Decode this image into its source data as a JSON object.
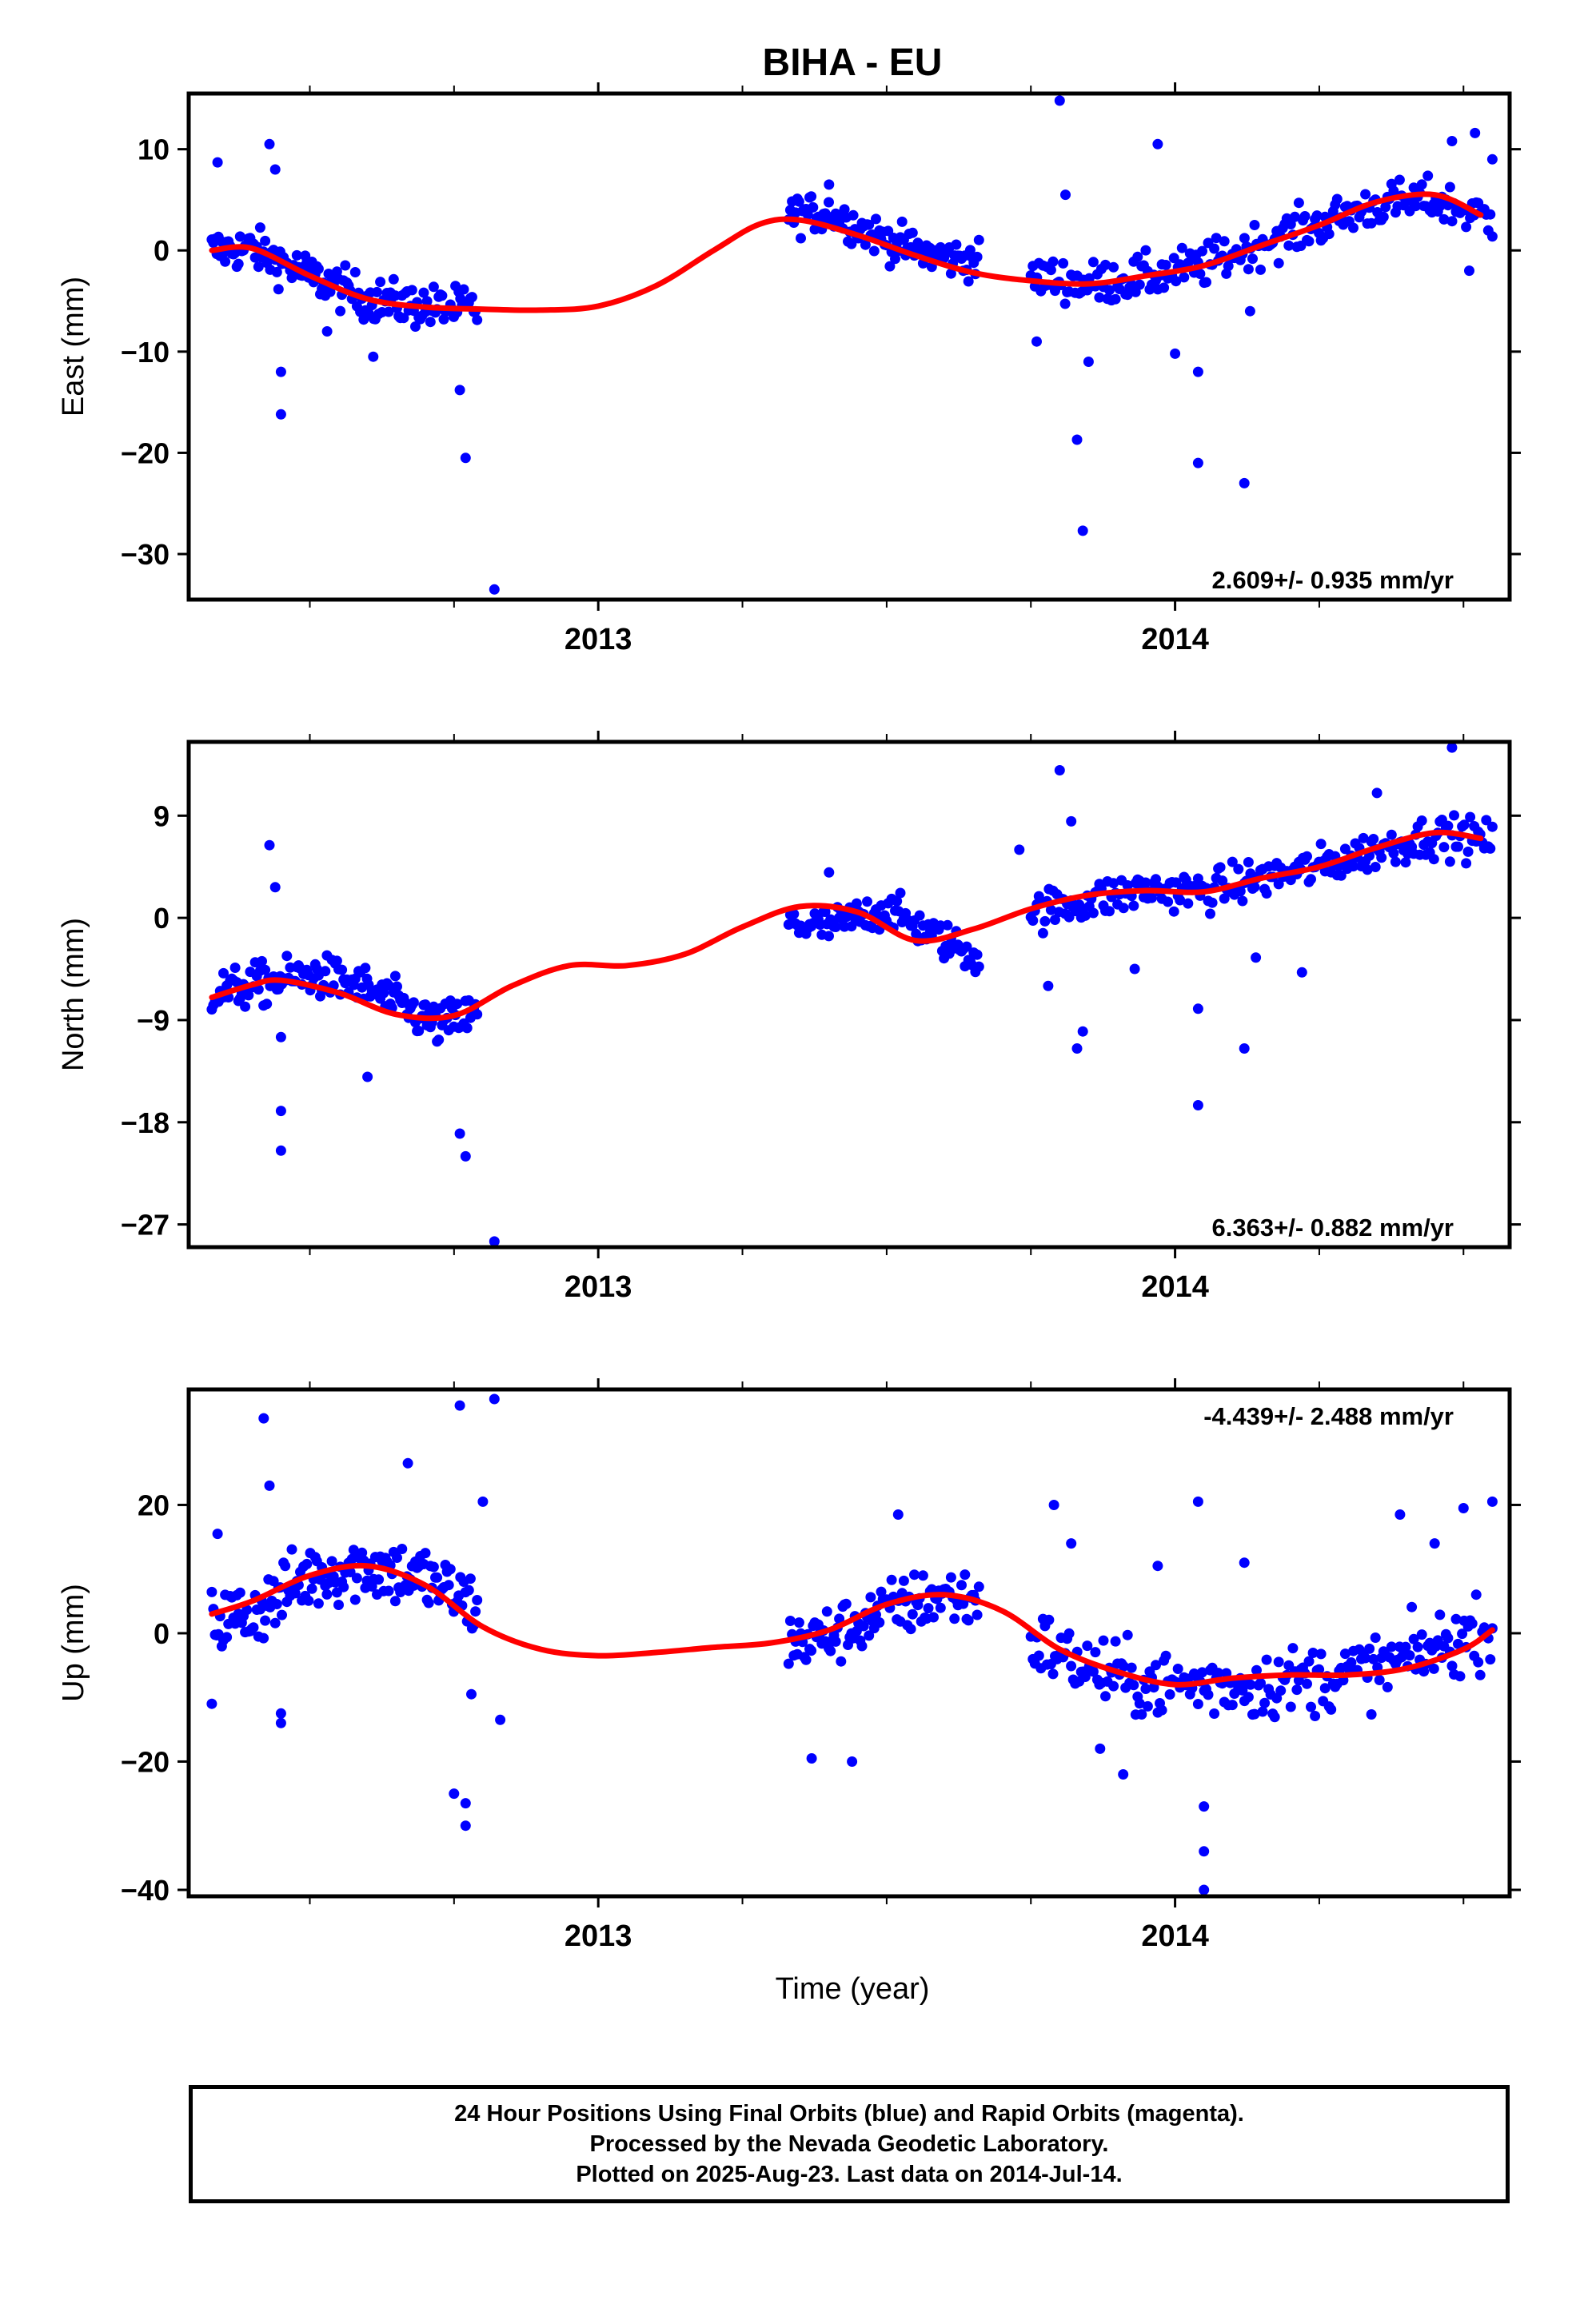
{
  "title": "BIHA - EU",
  "xlabel": "Time (year)",
  "caption": [
    "24 Hour Positions Using Final Orbits (blue) and Rapid Orbits (magenta).",
    "Processed by the Nevada Geodetic Laboratory.",
    "Plotted on 2025-Aug-23. Last data on 2014-Jul-14."
  ],
  "colors": {
    "points": "#0000ff",
    "fit": "#ff0000",
    "axis": "#000000"
  },
  "chart_data": [
    {
      "type": "scatter",
      "ylabel": "East (mm)",
      "rate_label": "2.609+/- 0.935 mm/yr",
      "xlim": [
        2012.29,
        2014.58
      ],
      "ylim": [
        -34.5,
        15.5
      ],
      "yticks": [
        10,
        0,
        -10,
        -20,
        -30
      ],
      "ytick_labels": [
        "10",
        "0",
        "−10",
        "−20",
        "−30"
      ],
      "xticks": [
        2013,
        2014
      ],
      "xtick_labels": [
        "2013",
        "2014"
      ],
      "x_minor": [
        2012.25,
        2012.5,
        2012.75,
        2013.25,
        2013.5,
        2013.75,
        2014.25,
        2014.5
      ],
      "fit": {
        "x": [
          2012.33,
          2012.4,
          2012.5,
          2012.6,
          2012.7,
          2012.8,
          2012.9,
          2013.0,
          2013.1,
          2013.2,
          2013.28,
          2013.35,
          2013.45,
          2013.55,
          2013.65,
          2013.75,
          2013.85,
          2013.95,
          2014.05,
          2014.15,
          2014.25,
          2014.35,
          2014.45,
          2014.53
        ],
        "y": [
          0,
          0.2,
          -2.5,
          -4.8,
          -5.6,
          -5.8,
          -5.9,
          -5.5,
          -3.5,
          0,
          2.6,
          3.0,
          1.5,
          -0.5,
          -2.2,
          -3.0,
          -3.3,
          -2.5,
          -1.5,
          0.5,
          2.5,
          4.8,
          5.5,
          3.5
        ]
      },
      "segments": [
        {
          "x0": 2012.33,
          "x1": 2012.79,
          "center": [
            [
              2012.33,
              0
            ],
            [
              2012.4,
              0.2
            ],
            [
              2012.5,
              -2.5
            ],
            [
              2012.6,
              -4.8
            ],
            [
              2012.7,
              -5.6
            ],
            [
              2012.79,
              -5.8
            ]
          ],
          "spread": 1.8,
          "n": 160
        },
        {
          "x0": 2013.33,
          "x1": 2013.66,
          "center": [
            [
              2013.33,
              3.5
            ],
            [
              2013.4,
              3.8
            ],
            [
              2013.5,
              1.0
            ],
            [
              2013.58,
              -0.5
            ],
            [
              2013.66,
              -1.0
            ]
          ],
          "spread": 1.6,
          "n": 110
        },
        {
          "x0": 2013.75,
          "x1": 2014.55,
          "center": [
            [
              2013.75,
              -2.5
            ],
            [
              2013.85,
              -3.3
            ],
            [
              2013.95,
              -2.6
            ],
            [
              2014.05,
              -1.5
            ],
            [
              2014.15,
              0.8
            ],
            [
              2014.25,
              2.6
            ],
            [
              2014.35,
              4.5
            ],
            [
              2014.45,
              5.0
            ],
            [
              2014.55,
              3.0
            ]
          ],
          "spread": 1.8,
          "n": 230
        }
      ],
      "outliers": [
        [
          2012.34,
          8.7
        ],
        [
          2012.43,
          10.5
        ],
        [
          2012.44,
          8.0
        ],
        [
          2012.45,
          -12.0
        ],
        [
          2012.45,
          -16.2
        ],
        [
          2012.76,
          -13.8
        ],
        [
          2012.77,
          -20.5
        ],
        [
          2012.82,
          -33.5
        ],
        [
          2013.4,
          6.5
        ],
        [
          2013.8,
          14.8
        ],
        [
          2013.76,
          -9.0
        ],
        [
          2013.83,
          -18.7
        ],
        [
          2013.84,
          -27.7
        ],
        [
          2013.85,
          -11.0
        ],
        [
          2013.97,
          10.5
        ],
        [
          2014.0,
          -10.2
        ],
        [
          2014.04,
          -12.0
        ],
        [
          2014.04,
          -21.0
        ],
        [
          2014.12,
          -23.0
        ],
        [
          2014.48,
          10.8
        ],
        [
          2014.52,
          11.6
        ],
        [
          2014.55,
          9.0
        ],
        [
          2012.53,
          -8.0
        ],
        [
          2012.61,
          -10.5
        ],
        [
          2013.81,
          5.5
        ],
        [
          2014.13,
          -6.0
        ],
        [
          2014.51,
          -2.0
        ]
      ]
    },
    {
      "type": "scatter",
      "ylabel": "North (mm)",
      "rate_label": "6.363+/- 0.882 mm/yr",
      "xlim": [
        2012.29,
        2014.58
      ],
      "ylim": [
        -29.0,
        15.5
      ],
      "yticks": [
        9,
        0,
        -9,
        -18,
        -27
      ],
      "ytick_labels": [
        "9",
        "0",
        "−9",
        "−18",
        "−27"
      ],
      "xticks": [
        2013,
        2014
      ],
      "xtick_labels": [
        "2013",
        "2014"
      ],
      "x_minor": [
        2012.25,
        2012.5,
        2012.75,
        2013.25,
        2013.5,
        2013.75,
        2014.25,
        2014.5
      ],
      "fit": {
        "x": [
          2012.33,
          2012.4,
          2012.45,
          2012.55,
          2012.65,
          2012.75,
          2012.85,
          2012.95,
          2013.05,
          2013.15,
          2013.25,
          2013.35,
          2013.45,
          2013.55,
          2013.65,
          2013.75,
          2013.85,
          2013.95,
          2014.05,
          2014.15,
          2014.25,
          2014.35,
          2014.45,
          2014.53
        ],
        "y": [
          -7.0,
          -5.9,
          -5.5,
          -6.6,
          -8.5,
          -8.6,
          -6.0,
          -4.2,
          -4.2,
          -3.2,
          -0.8,
          1.0,
          0.5,
          -2.0,
          -1.0,
          0.8,
          2.0,
          2.4,
          2.3,
          3.5,
          4.5,
          6.2,
          7.5,
          7.0
        ]
      },
      "segments": [
        {
          "x0": 2012.33,
          "x1": 2012.79,
          "center": [
            [
              2012.33,
              -6.6
            ],
            [
              2012.4,
              -6.0
            ],
            [
              2012.5,
              -5.0
            ],
            [
              2012.58,
              -5.8
            ],
            [
              2012.65,
              -7.5
            ],
            [
              2012.72,
              -9.5
            ],
            [
              2012.79,
              -8.5
            ]
          ],
          "spread": 1.6,
          "n": 160
        },
        {
          "x0": 2013.33,
          "x1": 2013.66,
          "center": [
            [
              2013.33,
              -0.5
            ],
            [
              2013.4,
              -0.8
            ],
            [
              2013.5,
              0.8
            ],
            [
              2013.58,
              -1.5
            ],
            [
              2013.66,
              -3.5
            ]
          ],
          "spread": 1.4,
          "n": 110
        },
        {
          "x0": 2013.75,
          "x1": 2014.55,
          "center": [
            [
              2013.75,
              0.5
            ],
            [
              2013.85,
              1.5
            ],
            [
              2013.95,
              2.5
            ],
            [
              2014.05,
              2.3
            ],
            [
              2014.15,
              3.5
            ],
            [
              2014.25,
              4.5
            ],
            [
              2014.35,
              6.0
            ],
            [
              2014.45,
              7.3
            ],
            [
              2014.55,
              6.8
            ]
          ],
          "spread": 1.5,
          "n": 230
        }
      ],
      "outliers": [
        [
          2012.43,
          6.4
        ],
        [
          2012.44,
          2.7
        ],
        [
          2012.45,
          -10.5
        ],
        [
          2012.45,
          -17.0
        ],
        [
          2012.45,
          -20.5
        ],
        [
          2012.6,
          -14.0
        ],
        [
          2012.76,
          -19.0
        ],
        [
          2012.77,
          -21.0
        ],
        [
          2012.82,
          -28.5
        ],
        [
          2013.8,
          13.0
        ],
        [
          2013.82,
          8.5
        ],
        [
          2013.83,
          -11.5
        ],
        [
          2013.84,
          -10.0
        ],
        [
          2013.78,
          -6.0
        ],
        [
          2014.04,
          -8.0
        ],
        [
          2014.04,
          -16.5
        ],
        [
          2014.12,
          -11.5
        ],
        [
          2014.22,
          -4.8
        ],
        [
          2014.35,
          11.0
        ],
        [
          2014.48,
          15.0
        ],
        [
          2013.4,
          4.0
        ],
        [
          2013.93,
          -4.5
        ],
        [
          2014.14,
          -3.5
        ],
        [
          2013.73,
          6.0
        ]
      ]
    },
    {
      "type": "scatter",
      "ylabel": "Up (mm)",
      "rate_label": "-4.439+/- 2.488 mm/yr",
      "xlim": [
        2012.29,
        2014.58
      ],
      "ylim": [
        -41.0,
        38.0
      ],
      "yticks": [
        20,
        0,
        -20,
        -40
      ],
      "ytick_labels": [
        "20",
        "0",
        "−20",
        "−40"
      ],
      "xticks": [
        2013,
        2014
      ],
      "xtick_labels": [
        "2013",
        "2014"
      ],
      "x_minor": [
        2012.25,
        2012.5,
        2012.75,
        2013.25,
        2013.5,
        2013.75,
        2014.25,
        2014.5
      ],
      "fit": {
        "x": [
          2012.33,
          2012.4,
          2012.5,
          2012.6,
          2012.7,
          2012.8,
          2012.9,
          2013.0,
          2013.1,
          2013.2,
          2013.3,
          2013.4,
          2013.5,
          2013.6,
          2013.7,
          2013.8,
          2013.9,
          2014.0,
          2014.1,
          2014.2,
          2014.3,
          2014.4,
          2014.5,
          2014.55
        ],
        "y": [
          3.0,
          5.0,
          9.0,
          10.5,
          7.5,
          1.0,
          -2.5,
          -3.5,
          -3.0,
          -2.2,
          -1.5,
          0.5,
          4.5,
          6.0,
          3.5,
          -2.5,
          -6.0,
          -8.0,
          -7.0,
          -6.5,
          -6.5,
          -5.5,
          -2.5,
          0.5
        ]
      },
      "segments": [
        {
          "x0": 2012.33,
          "x1": 2012.79,
          "center": [
            [
              2012.33,
              2.0
            ],
            [
              2012.4,
              3.0
            ],
            [
              2012.5,
              9.0
            ],
            [
              2012.6,
              10.5
            ],
            [
              2012.7,
              8.5
            ],
            [
              2012.79,
              4.0
            ]
          ],
          "spread": 4.5,
          "n": 160
        },
        {
          "x0": 2013.33,
          "x1": 2013.66,
          "center": [
            [
              2013.33,
              -1.5
            ],
            [
              2013.4,
              -0.5
            ],
            [
              2013.5,
              3.5
            ],
            [
              2013.6,
              6.0
            ],
            [
              2013.66,
              5.0
            ]
          ],
          "spread": 4.0,
          "n": 110
        },
        {
          "x0": 2013.75,
          "x1": 2014.55,
          "center": [
            [
              2013.75,
              -1.0
            ],
            [
              2013.85,
              -5.5
            ],
            [
              2013.95,
              -8.0
            ],
            [
              2014.05,
              -8.0
            ],
            [
              2014.15,
              -8.0
            ],
            [
              2014.25,
              -7.0
            ],
            [
              2014.35,
              -5.5
            ],
            [
              2014.45,
              -2.5
            ],
            [
              2014.55,
              1.0
            ]
          ],
          "spread": 4.5,
          "n": 230
        }
      ],
      "outliers": [
        [
          2012.33,
          -11.0
        ],
        [
          2012.34,
          15.5
        ],
        [
          2012.42,
          33.5
        ],
        [
          2012.43,
          23.0
        ],
        [
          2012.45,
          -12.5
        ],
        [
          2012.45,
          -14.0
        ],
        [
          2012.67,
          26.5
        ],
        [
          2012.76,
          35.5
        ],
        [
          2012.77,
          -26.5
        ],
        [
          2012.77,
          -30.0
        ],
        [
          2012.78,
          -9.5
        ],
        [
          2012.8,
          20.5
        ],
        [
          2012.82,
          36.5
        ],
        [
          2012.83,
          -13.5
        ],
        [
          2012.75,
          -25.0
        ],
        [
          2013.37,
          -19.5
        ],
        [
          2013.44,
          -20.0
        ],
        [
          2013.52,
          18.5
        ],
        [
          2013.79,
          20.0
        ],
        [
          2013.82,
          14.0
        ],
        [
          2013.87,
          -18.0
        ],
        [
          2013.91,
          -22.0
        ],
        [
          2013.97,
          10.5
        ],
        [
          2014.04,
          20.5
        ],
        [
          2014.05,
          -27.0
        ],
        [
          2014.05,
          -34.0
        ],
        [
          2014.05,
          -40.0
        ],
        [
          2014.12,
          11.0
        ],
        [
          2014.39,
          18.5
        ],
        [
          2014.45,
          14.0
        ],
        [
          2014.5,
          19.5
        ],
        [
          2014.55,
          20.5
        ]
      ]
    }
  ]
}
